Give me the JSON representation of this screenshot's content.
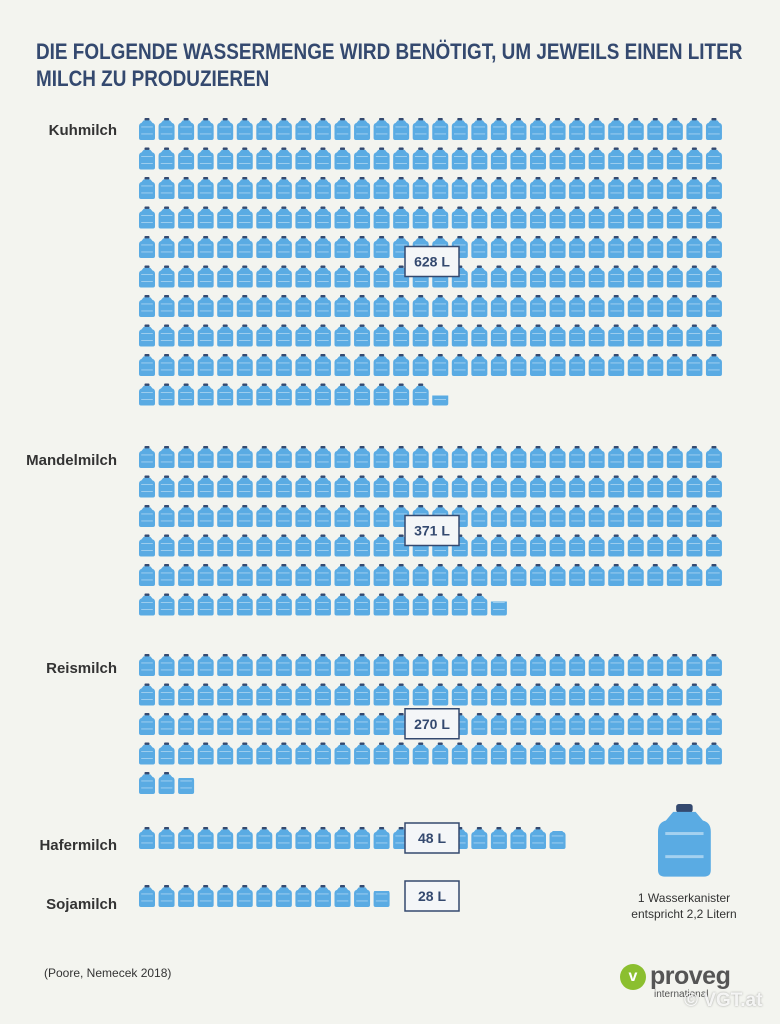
{
  "title_lines": [
    "DIE FOLGENDE WASSERMENGE WIRD BENÖTIGT, UM JEWEILS EINEN LITER",
    "MILCH ZU PRODUZIEREN"
  ],
  "source": "(Poore, Nemecek 2018)",
  "brand": {
    "name": "proveg",
    "sub": "international",
    "watermark": "© VGT.at",
    "color": "#8bbf2f"
  },
  "legend": {
    "lines": [
      "1 Wasserkanister",
      "entspricht 2,2 Litern"
    ],
    "liters_per_canister": 2.2
  },
  "colors": {
    "canister": "#5aabe3",
    "canister_cap": "#34496f",
    "label_text": "#34496f",
    "title": "#34496f"
  },
  "chart_data": {
    "type": "pictogram",
    "title": "DIE FOLGENDE WASSERMENGE WIRD BENÖTIGT, UM JEWEILS EINEN LITER MILCH ZU PRODUZIEREN",
    "unit": "L",
    "icon": "water-canister",
    "icon_value": 2.2,
    "series": [
      {
        "name": "Kuhmilch",
        "value": 628,
        "label": "628 L"
      },
      {
        "name": "Mandelmilch",
        "value": 371,
        "label": "371 L"
      },
      {
        "name": "Reismilch",
        "value": 270,
        "label": "270 L"
      },
      {
        "name": "Hafermilch",
        "value": 48,
        "label": "48 L"
      },
      {
        "name": "Sojamilch",
        "value": 28,
        "label": "28 L"
      }
    ]
  }
}
